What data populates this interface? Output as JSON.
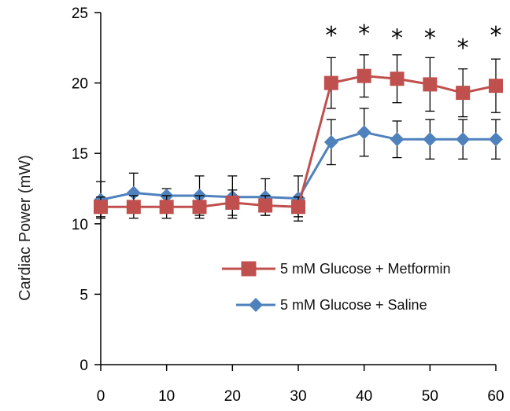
{
  "chart_data": {
    "type": "line",
    "ylabel": "Cardiac Power (mW)",
    "xlabel": "",
    "xlim": [
      0,
      60
    ],
    "ylim": [
      0,
      25
    ],
    "xticks": [
      0,
      10,
      20,
      30,
      40,
      50,
      60
    ],
    "yticks": [
      0,
      5,
      10,
      15,
      20,
      25
    ],
    "grid": false,
    "legend_position": "bottom-right",
    "x": [
      0,
      5,
      10,
      15,
      20,
      25,
      30,
      35,
      40,
      45,
      50,
      55,
      60
    ],
    "series": [
      {
        "name": "5 mM Glucose + Metformin",
        "color": "#c0504d",
        "marker": "square",
        "values": [
          11.2,
          11.2,
          11.2,
          11.2,
          11.5,
          11.3,
          11.2,
          20.0,
          20.5,
          20.3,
          19.9,
          19.3,
          19.8
        ],
        "error": [
          0.7,
          0.8,
          0.8,
          0.8,
          0.9,
          0.7,
          0.7,
          1.8,
          1.5,
          1.7,
          1.9,
          1.7,
          1.9
        ]
      },
      {
        "name": "5 mM Glucose + Saline",
        "color": "#4f81bd",
        "marker": "diamond",
        "values": [
          11.7,
          12.2,
          12.0,
          12.0,
          11.9,
          11.9,
          11.8,
          15.8,
          16.5,
          16.0,
          16.0,
          16.0,
          16.0
        ],
        "error": [
          1.3,
          1.4,
          0.5,
          1.4,
          1.5,
          1.3,
          1.6,
          1.6,
          1.7,
          1.3,
          1.4,
          1.4,
          1.4
        ]
      }
    ],
    "significance": {
      "symbol": "*",
      "points": [
        {
          "x": 35,
          "y": 23.5
        },
        {
          "x": 40,
          "y": 23.6
        },
        {
          "x": 45,
          "y": 23.3
        },
        {
          "x": 50,
          "y": 23.3
        },
        {
          "x": 55,
          "y": 22.6
        },
        {
          "x": 60,
          "y": 23.5
        }
      ]
    }
  }
}
